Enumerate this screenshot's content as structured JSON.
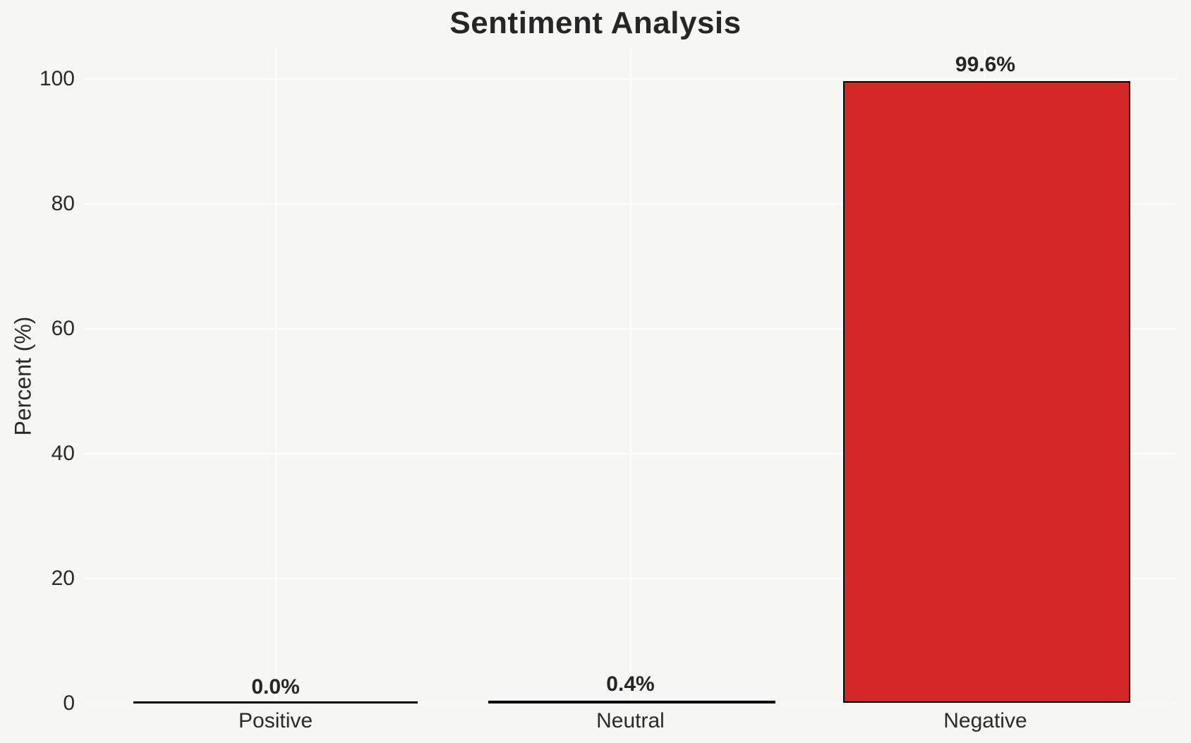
{
  "title": "Sentiment Analysis",
  "colors": {
    "background": "#f6f6f4",
    "grid": "#ffffff",
    "text": "#2a2a2a",
    "bar_edge": "#000000",
    "negative_bar": "#d62728",
    "neutral_bar": "#ffd700"
  },
  "chart_data": {
    "type": "bar",
    "title": "Sentiment Analysis",
    "xlabel": "",
    "ylabel": "Percent (%)",
    "categories": [
      "Positive",
      "Neutral",
      "Negative"
    ],
    "values": [
      0.0,
      0.4,
      99.6
    ],
    "value_labels": [
      "0.0%",
      "0.4%",
      "99.6%"
    ],
    "bar_colors": [
      "#000000",
      "#ffd700",
      "#d62728"
    ],
    "bar_edge_color": "#000000",
    "yticks": [
      0,
      20,
      40,
      60,
      80,
      100
    ],
    "ytick_labels": [
      "0",
      "20",
      "40",
      "60",
      "80",
      "100"
    ],
    "ylim": [
      0,
      104.7
    ],
    "grid": true,
    "grid_color": "#ffffff",
    "legend": null
  }
}
